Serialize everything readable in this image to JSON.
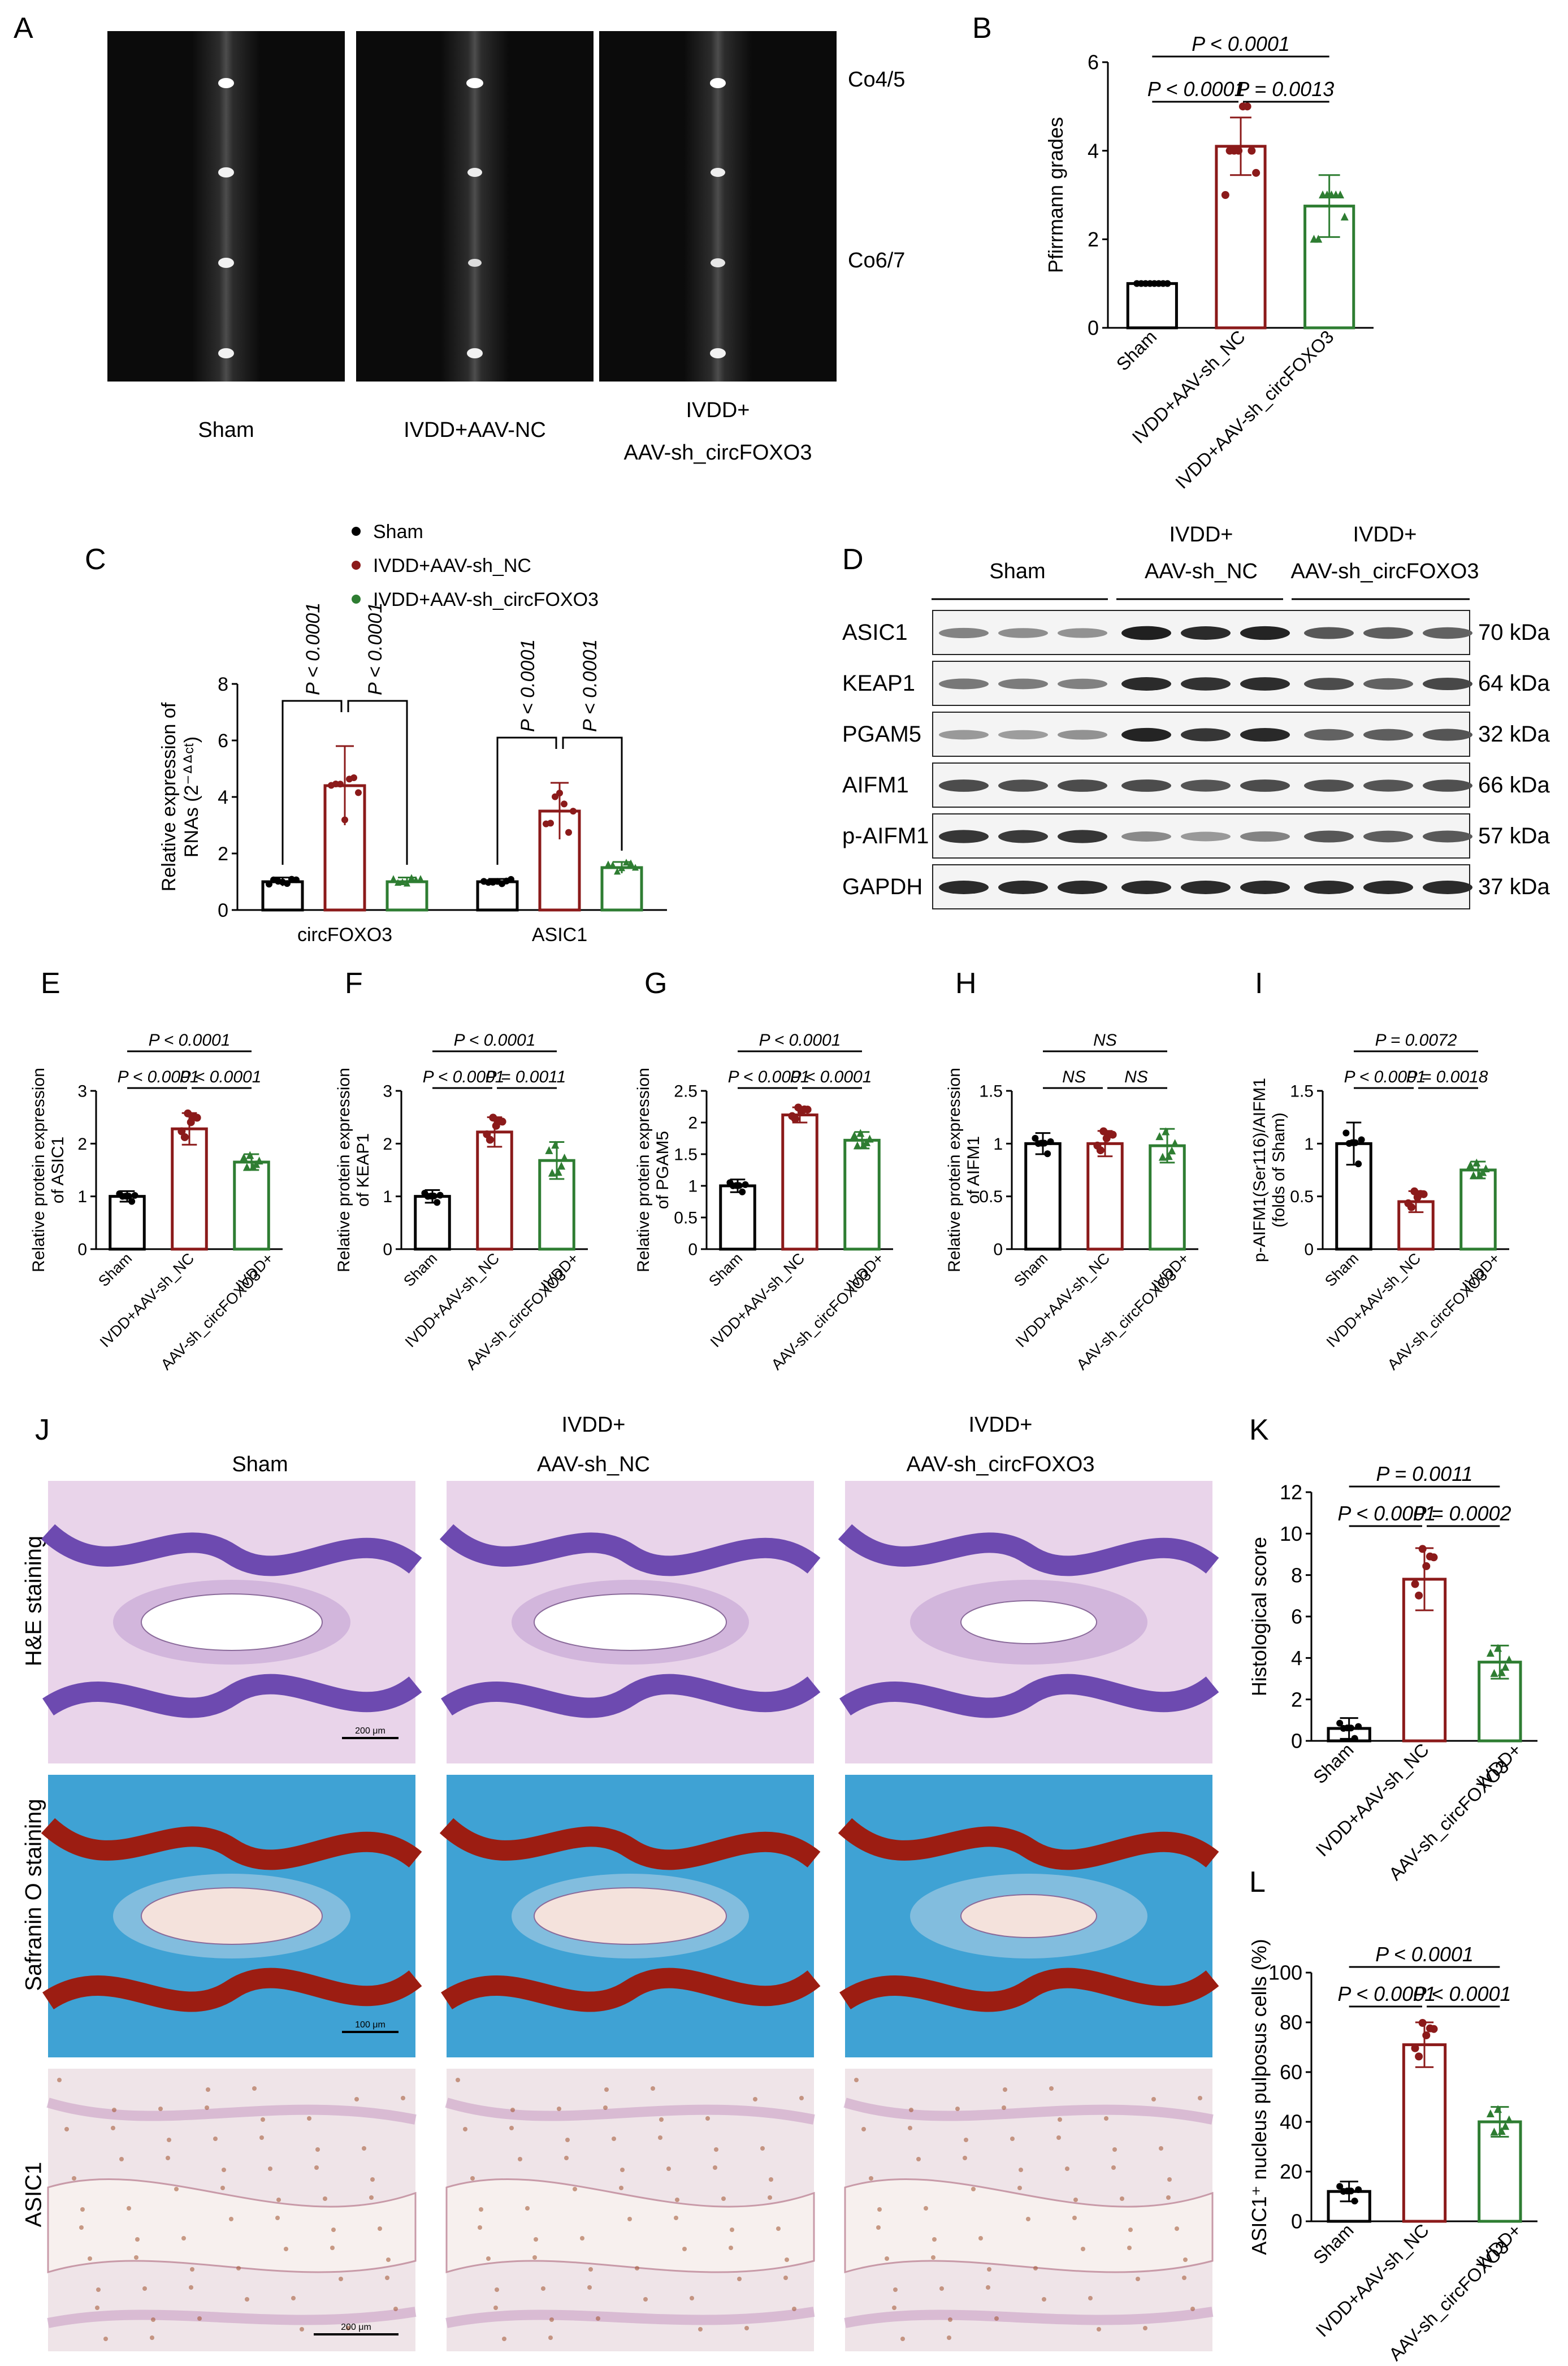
{
  "panel_letters": {
    "A": "A",
    "B": "B",
    "C": "C",
    "D": "D",
    "E": "E",
    "F": "F",
    "G": "G",
    "H": "H",
    "I": "I",
    "J": "J",
    "K": "K",
    "L": "L"
  },
  "colors": {
    "sham": "#000000",
    "nc": "#8b1a1a",
    "circ": "#2e7d32"
  },
  "panelA": {
    "labels": [
      "Sham",
      "IVDD+AAV-NC"
    ],
    "label3_line1": "IVDD+",
    "label3_line2": "AAV-sh_circFOXO3",
    "levels": [
      "Co4/5",
      "Co6/7"
    ]
  },
  "panelD": {
    "groups": [
      "Sham"
    ],
    "group2_line1": "IVDD+",
    "group2_line2": "AAV-sh_NC",
    "group3_line1": "IVDD+",
    "group3_line2": "AAV-sh_circFOXO3",
    "proteins": [
      "ASIC1",
      "KEAP1",
      "PGAM5",
      "AIFM1",
      "p-AIFM1",
      "GAPDH"
    ],
    "sizes": [
      "70 kDa",
      "64 kDa",
      "32 kDa",
      "66 kDa",
      "57 kDa",
      "37 kDa"
    ],
    "band_intensity": [
      [
        0.45,
        0.4,
        0.38,
        0.9,
        0.85,
        0.88,
        0.65,
        0.62,
        0.6
      ],
      [
        0.5,
        0.48,
        0.46,
        0.85,
        0.82,
        0.84,
        0.7,
        0.6,
        0.72
      ],
      [
        0.35,
        0.33,
        0.38,
        0.88,
        0.8,
        0.86,
        0.6,
        0.62,
        0.66
      ],
      [
        0.7,
        0.68,
        0.7,
        0.7,
        0.66,
        0.7,
        0.68,
        0.66,
        0.68
      ],
      [
        0.8,
        0.78,
        0.8,
        0.42,
        0.35,
        0.45,
        0.65,
        0.62,
        0.64
      ],
      [
        0.85,
        0.85,
        0.85,
        0.85,
        0.85,
        0.85,
        0.85,
        0.85,
        0.85
      ]
    ]
  },
  "panelJ": {
    "col1": "Sham",
    "col2_line1": "IVDD+",
    "col2_line2": "AAV-sh_NC",
    "col3_line1": "IVDD+",
    "col3_line2": "AAV-sh_circFOXO3",
    "rows": [
      "H&E staining",
      "Safranin O staining",
      "ASIC1"
    ],
    "scale_bars": [
      "200 μm",
      "100 μm",
      "200 μm"
    ]
  },
  "chart_data": [
    {
      "id": "B",
      "type": "bar",
      "categories": [
        "Sham",
        "IVDD+AAV-sh_NC",
        "IVDD+AAV-sh_circFOXO3"
      ],
      "values": [
        1.0,
        4.1,
        2.75
      ],
      "errors": [
        0,
        0.65,
        0.7
      ],
      "ylabel": "Pfirrmann grades",
      "ylim": [
        0,
        6
      ],
      "yticks": [
        0,
        2,
        4,
        6
      ],
      "points": [
        [
          1,
          1,
          1,
          1,
          1,
          1,
          1,
          1
        ],
        [
          3,
          4,
          4,
          4,
          5,
          5,
          4,
          3.5
        ],
        [
          2,
          2,
          3,
          3,
          3,
          3,
          3,
          2.5
        ]
      ],
      "annotations": [
        "P < 0.0001",
        "P < 0.0001",
        "P = 0.0013"
      ]
    },
    {
      "id": "C",
      "type": "bar",
      "categories": [
        "circFOXO3",
        "ASIC1"
      ],
      "legend": [
        "Sham",
        "IVDD+AAV-sh_NC",
        "IVDD+AAV-sh_circFOXO3"
      ],
      "series": [
        {
          "name": "Sham",
          "values": [
            1.0,
            1.0
          ],
          "errors": [
            0.15,
            0.1
          ]
        },
        {
          "name": "IVDD+AAV-sh_NC",
          "values": [
            4.4,
            3.5
          ],
          "errors": [
            1.4,
            1.0
          ]
        },
        {
          "name": "IVDD+AAV-sh_circFOXO3",
          "values": [
            1.0,
            1.5
          ],
          "errors": [
            0.15,
            0.2
          ]
        }
      ],
      "ylabel_line1": "Relative expression of",
      "ylabel_line2": "RNAs (2⁻ᐞᐞᶜᵗ)",
      "ylim": [
        0,
        8
      ],
      "yticks": [
        0,
        2,
        4,
        6,
        8
      ],
      "annotations": [
        "P < 0.0001",
        "P < 0.0001",
        "P < 0.0001",
        "P < 0.0001"
      ]
    },
    {
      "id": "E",
      "type": "bar",
      "categories": [
        "Sham",
        "IVDD+AAV-sh_NC",
        "IVDD+ AAV-sh_circFOXO3"
      ],
      "values": [
        1.0,
        2.28,
        1.65
      ],
      "errors": [
        0.1,
        0.3,
        0.15
      ],
      "ylabel_line1": "Relative protein expression",
      "ylabel_line2": "of ASIC1",
      "ylim": [
        0,
        3
      ],
      "yticks": [
        0,
        1,
        2,
        3
      ],
      "annotations": [
        "P < 0.0001",
        "P < 0.0001",
        "P < 0.0001"
      ]
    },
    {
      "id": "F",
      "type": "bar",
      "categories": [
        "Sham",
        "IVDD+AAV-sh_NC",
        "IVDD+ AAV-sh_circFOXO3"
      ],
      "values": [
        1.0,
        2.22,
        1.68
      ],
      "errors": [
        0.12,
        0.28,
        0.35
      ],
      "ylabel_line1": "Relative protein expression",
      "ylabel_line2": "of KEAP1",
      "ylim": [
        0,
        3
      ],
      "yticks": [
        0,
        1,
        2,
        3
      ],
      "annotations": [
        "P < 0.0001",
        "P < 0.0001",
        "P = 0.0011"
      ]
    },
    {
      "id": "G",
      "type": "bar",
      "categories": [
        "Sham",
        "IVDD+AAV-sh_NC",
        "IVDD+ AAV-sh_circFOXO3"
      ],
      "values": [
        1.0,
        2.12,
        1.72
      ],
      "errors": [
        0.1,
        0.12,
        0.13
      ],
      "ylabel_line1": "Relative protein expression",
      "ylabel_line2": "of PGAM5",
      "ylim": [
        0,
        2.5
      ],
      "yticks": [
        0.0,
        0.5,
        1.0,
        1.5,
        2.0,
        2.5
      ],
      "annotations": [
        "P < 0.0001",
        "P < 0.0001",
        "P < 0.0001"
      ]
    },
    {
      "id": "H",
      "type": "bar",
      "categories": [
        "Sham",
        "IVDD+AAV-sh_NC",
        "IVDD+ AAV-sh_circFOXO3"
      ],
      "values": [
        1.0,
        1.0,
        0.98
      ],
      "errors": [
        0.1,
        0.12,
        0.16
      ],
      "ylabel_line1": "Relative protein expression",
      "ylabel_line2": "of AIFM1",
      "ylim": [
        0,
        1.5
      ],
      "yticks": [
        0.0,
        0.5,
        1.0,
        1.5
      ],
      "annotations": [
        "NS",
        "NS",
        "NS"
      ]
    },
    {
      "id": "I",
      "type": "bar",
      "categories": [
        "Sham",
        "IVDD+AAV-sh_NC",
        "IVDD+ AAV-sh_circFOXO3"
      ],
      "values": [
        1.0,
        0.45,
        0.75
      ],
      "errors": [
        0.2,
        0.1,
        0.08
      ],
      "ylabel_line1": "p-AIFM1(Ser116)/AIFM1",
      "ylabel_line2": "(folds of Sham)",
      "ylim": [
        0,
        1.5
      ],
      "yticks": [
        0.0,
        0.5,
        1.0,
        1.5
      ],
      "annotations": [
        "P = 0.0072",
        "P < 0.0001",
        "P = 0.0018"
      ]
    },
    {
      "id": "K",
      "type": "bar",
      "categories": [
        "Sham",
        "IVDD+AAV-sh_NC",
        "IVDD+ AAV-sh_circFOXO3"
      ],
      "values": [
        0.6,
        7.8,
        3.8
      ],
      "errors": [
        0.5,
        1.5,
        0.8
      ],
      "ylabel": "Histological score",
      "ylim": [
        0,
        12
      ],
      "yticks": [
        0,
        2,
        4,
        6,
        8,
        10,
        12
      ],
      "annotations": [
        "P = 0.0011",
        "P < 0.0001",
        "P = 0.0002"
      ]
    },
    {
      "id": "L",
      "type": "bar",
      "categories": [
        "Sham",
        "IVDD+AAV-sh_NC",
        "IVDD+ AAV-sh_circFOXO3"
      ],
      "values": [
        12,
        71,
        40
      ],
      "errors": [
        4,
        9,
        6
      ],
      "ylabel": "ASIC1⁺ nucleus pulposus cells (%)",
      "ylim": [
        0,
        100
      ],
      "yticks": [
        0,
        20,
        40,
        60,
        80,
        100
      ],
      "annotations": [
        "P < 0.0001",
        "P < 0.0001",
        "P < 0.0001"
      ]
    }
  ]
}
